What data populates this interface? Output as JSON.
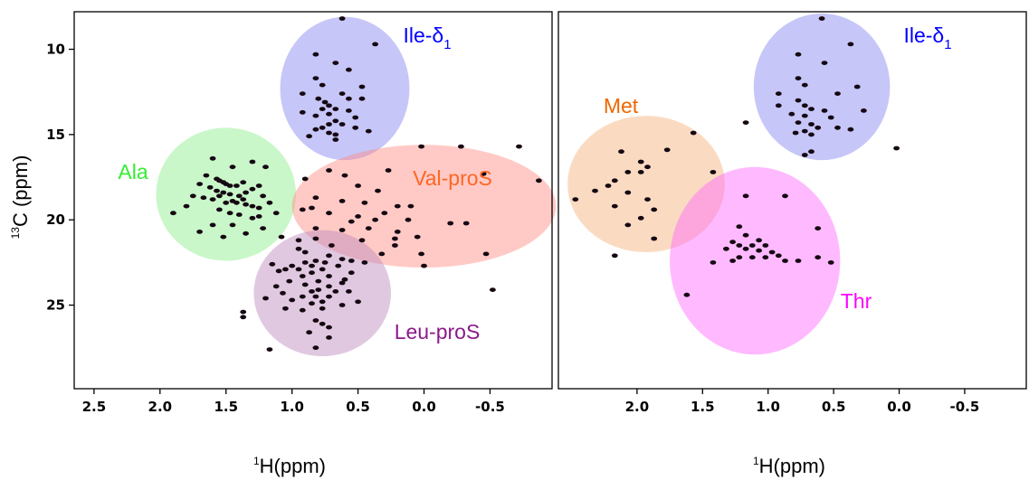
{
  "chart_data": [
    {
      "type": "scatter",
      "panel": "left",
      "xlabel": {
        "sup": "1",
        "text": "H(ppm)"
      },
      "ylabel": {
        "sup": "13",
        "text": "C (ppm)"
      },
      "xlim": [
        2.65,
        -0.97
      ],
      "ylim": [
        7.8,
        29.9
      ],
      "x_reversed": true,
      "y_reversed": true,
      "x_ticks": [
        "2.5",
        "2.0",
        "1.5",
        "1.0",
        "0.5",
        "0.0",
        "-0.5"
      ],
      "y_ticks": [
        "10",
        "15",
        "20",
        "25"
      ],
      "regions": [
        {
          "label": "Ile-δ",
          "sub": "1",
          "color": "#0000ff",
          "fill": "#8080f0",
          "cx": 0.6,
          "cy": 12.3,
          "rx": 0.49,
          "ry": 4.2
        },
        {
          "label": "Ala",
          "color": "#33ee33",
          "fill": "#88ee88",
          "cx": 1.5,
          "cy": 18.5,
          "rx": 0.53,
          "ry": 3.9
        },
        {
          "label": "Val-proS",
          "color": "#ff6622",
          "fill": "#ff8a80",
          "cx": 0.0,
          "cy": 19.2,
          "rx": 1.0,
          "ry": 3.6
        },
        {
          "label": "Leu-proS",
          "color": "#8b1a8b",
          "fill": "#bb88bb",
          "cx": 0.77,
          "cy": 24.3,
          "rx": 0.52,
          "ry": 3.7
        }
      ],
      "points": [
        [
          0.62,
          8.2
        ],
        [
          0.37,
          9.7
        ],
        [
          0.82,
          10.3
        ],
        [
          0.67,
          10.8
        ],
        [
          0.57,
          11.2
        ],
        [
          0.82,
          11.7
        ],
        [
          0.77,
          12.1
        ],
        [
          0.47,
          12.2
        ],
        [
          0.92,
          12.6
        ],
        [
          0.62,
          12.6
        ],
        [
          0.47,
          12.9
        ],
        [
          0.75,
          13.1
        ],
        [
          0.72,
          13.3
        ],
        [
          0.67,
          13.5
        ],
        [
          0.77,
          13.5
        ],
        [
          0.57,
          13.6
        ],
        [
          0.92,
          13.7
        ],
        [
          0.72,
          13.8
        ],
        [
          0.82,
          13.9
        ],
        [
          0.52,
          14.0
        ],
        [
          0.67,
          14.2
        ],
        [
          0.72,
          14.4
        ],
        [
          0.62,
          14.4
        ],
        [
          0.77,
          14.6
        ],
        [
          0.82,
          14.7
        ],
        [
          0.72,
          14.9
        ],
        [
          0.67,
          15.0
        ],
        [
          0.87,
          15.1
        ],
        [
          0.52,
          14.6
        ],
        [
          0.42,
          14.8
        ],
        [
          0.67,
          15.3
        ],
        [
          0.8,
          12.9
        ],
        [
          0.57,
          12.9
        ],
        [
          1.6,
          16.4
        ],
        [
          1.45,
          16.9
        ],
        [
          1.3,
          16.6
        ],
        [
          1.2,
          16.9
        ],
        [
          1.65,
          17.4
        ],
        [
          1.57,
          17.6
        ],
        [
          1.55,
          17.7
        ],
        [
          1.52,
          17.8
        ],
        [
          1.5,
          17.9
        ],
        [
          1.47,
          18.0
        ],
        [
          1.42,
          18.0
        ],
        [
          1.37,
          17.8
        ],
        [
          1.7,
          17.9
        ],
        [
          1.62,
          18.1
        ],
        [
          1.57,
          18.3
        ],
        [
          1.52,
          18.4
        ],
        [
          1.47,
          18.5
        ],
        [
          1.4,
          18.6
        ],
        [
          1.35,
          18.4
        ],
        [
          1.3,
          18.2
        ],
        [
          1.25,
          18.0
        ],
        [
          1.67,
          18.7
        ],
        [
          1.6,
          18.8
        ],
        [
          1.45,
          18.9
        ],
        [
          1.42,
          19.0
        ],
        [
          1.35,
          19.1
        ],
        [
          1.3,
          19.2
        ],
        [
          1.25,
          19.3
        ],
        [
          1.8,
          19.2
        ],
        [
          1.55,
          19.4
        ],
        [
          1.47,
          19.6
        ],
        [
          1.4,
          19.7
        ],
        [
          1.3,
          19.9
        ],
        [
          1.6,
          20.3
        ],
        [
          1.45,
          20.3
        ],
        [
          1.22,
          20.5
        ],
        [
          1.12,
          19.6
        ],
        [
          1.17,
          19.0
        ],
        [
          1.9,
          19.6
        ],
        [
          1.75,
          18.6
        ],
        [
          1.52,
          21.0
        ],
        [
          1.35,
          20.8
        ],
        [
          1.7,
          20.7
        ],
        [
          1.08,
          21.0
        ],
        [
          1.22,
          18.6
        ],
        [
          1.25,
          19.8
        ],
        [
          1.55,
          18.6
        ],
        [
          1.5,
          19.0
        ],
        [
          1.37,
          18.8
        ],
        [
          0.02,
          15.7
        ],
        [
          -0.28,
          15.7
        ],
        [
          -0.45,
          17.3
        ],
        [
          -0.72,
          15.7
        ],
        [
          -0.87,
          17.7
        ],
        [
          0.72,
          17.1
        ],
        [
          0.6,
          17.4
        ],
        [
          0.9,
          17.6
        ],
        [
          0.5,
          18.0
        ],
        [
          0.35,
          18.3
        ],
        [
          0.82,
          18.7
        ],
        [
          0.62,
          18.9
        ],
        [
          0.45,
          19.0
        ],
        [
          0.2,
          19.2
        ],
        [
          0.85,
          19.3
        ],
        [
          0.72,
          19.6
        ],
        [
          0.5,
          19.8
        ],
        [
          0.55,
          20.1
        ],
        [
          0.37,
          20.0
        ],
        [
          0.12,
          20.0
        ],
        [
          -0.2,
          20.2
        ],
        [
          -0.32,
          20.2
        ],
        [
          0.82,
          20.5
        ],
        [
          0.62,
          20.6
        ],
        [
          0.42,
          20.5
        ],
        [
          0.2,
          20.7
        ],
        [
          0.05,
          21.0
        ],
        [
          0.22,
          21.5
        ],
        [
          0.32,
          22.0
        ],
        [
          0.02,
          22.0
        ],
        [
          -0.47,
          22.0
        ],
        [
          -0.52,
          24.1
        ],
        [
          0.0,
          22.7
        ],
        [
          0.47,
          21.2
        ],
        [
          0.3,
          19.6
        ],
        [
          0.1,
          19.2
        ],
        [
          0.92,
          19.4
        ],
        [
          0.22,
          21.1
        ],
        [
          0.27,
          17.1
        ],
        [
          0.82,
          21.1
        ],
        [
          0.7,
          21.5
        ],
        [
          0.95,
          21.7
        ],
        [
          0.9,
          21.9
        ],
        [
          0.72,
          22.1
        ],
        [
          0.62,
          22.3
        ],
        [
          0.82,
          22.4
        ],
        [
          0.75,
          22.5
        ],
        [
          0.9,
          22.5
        ],
        [
          0.85,
          22.7
        ],
        [
          0.65,
          22.7
        ],
        [
          1.0,
          22.7
        ],
        [
          0.95,
          22.9
        ],
        [
          0.77,
          22.9
        ],
        [
          1.15,
          22.6
        ],
        [
          1.1,
          23.0
        ],
        [
          0.85,
          23.1
        ],
        [
          0.72,
          23.3
        ],
        [
          0.55,
          23.1
        ],
        [
          0.92,
          23.3
        ],
        [
          1.02,
          23.6
        ],
        [
          0.8,
          23.6
        ],
        [
          0.62,
          23.7
        ],
        [
          1.12,
          23.9
        ],
        [
          0.9,
          23.8
        ],
        [
          0.72,
          23.9
        ],
        [
          0.8,
          24.1
        ],
        [
          0.67,
          24.2
        ],
        [
          0.57,
          24.2
        ],
        [
          1.07,
          24.3
        ],
        [
          0.92,
          24.5
        ],
        [
          0.82,
          24.5
        ],
        [
          0.72,
          24.5
        ],
        [
          1.2,
          24.6
        ],
        [
          1.0,
          24.7
        ],
        [
          0.77,
          24.8
        ],
        [
          0.85,
          24.9
        ],
        [
          0.62,
          25.0
        ],
        [
          1.05,
          25.2
        ],
        [
          0.92,
          25.3
        ],
        [
          0.77,
          25.2
        ],
        [
          0.5,
          24.8
        ],
        [
          1.37,
          25.4
        ],
        [
          1.37,
          25.7
        ],
        [
          0.82,
          25.9
        ],
        [
          0.77,
          26.1
        ],
        [
          0.72,
          26.3
        ],
        [
          0.87,
          26.6
        ],
        [
          0.72,
          26.9
        ],
        [
          1.17,
          27.6
        ],
        [
          0.82,
          27.5
        ],
        [
          0.45,
          22.5
        ],
        [
          0.95,
          21.2
        ],
        [
          0.55,
          22.4
        ],
        [
          1.05,
          22.9
        ],
        [
          0.6,
          23.5
        ],
        [
          0.85,
          24.2
        ]
      ]
    },
    {
      "type": "scatter",
      "panel": "right",
      "xlabel": {
        "sup": "1",
        "text": "H(ppm)"
      },
      "xlim": [
        2.6,
        -0.97
      ],
      "ylim": [
        7.8,
        29.9
      ],
      "x_reversed": true,
      "y_reversed": true,
      "x_ticks": [
        "2.0",
        "1.5",
        "1.0",
        "0.5",
        "0.0",
        "-0.5"
      ],
      "regions": [
        {
          "label": "Ile-δ",
          "sub": "1",
          "color": "#0000ff",
          "fill": "#8080f0",
          "cx": 0.59,
          "cy": 12.2,
          "rx": 0.52,
          "ry": 4.3
        },
        {
          "label": "Met",
          "color": "#ee6600",
          "fill": "#f5b077",
          "cx": 1.93,
          "cy": 17.9,
          "rx": 0.6,
          "ry": 4.0
        },
        {
          "label": "Thr",
          "color": "#ff00ff",
          "fill": "#ff66ff",
          "cx": 1.1,
          "cy": 22.4,
          "rx": 0.65,
          "ry": 5.5
        }
      ],
      "points": [
        [
          0.59,
          8.2
        ],
        [
          0.37,
          9.7
        ],
        [
          0.77,
          10.3
        ],
        [
          0.57,
          10.8
        ],
        [
          0.77,
          11.7
        ],
        [
          0.72,
          12.1
        ],
        [
          0.32,
          12.2
        ],
        [
          0.47,
          12.6
        ],
        [
          0.92,
          12.6
        ],
        [
          0.77,
          13.0
        ],
        [
          0.72,
          13.3
        ],
        [
          0.67,
          13.5
        ],
        [
          0.57,
          13.6
        ],
        [
          0.82,
          13.8
        ],
        [
          0.72,
          13.9
        ],
        [
          0.52,
          14.0
        ],
        [
          0.77,
          14.3
        ],
        [
          0.67,
          14.4
        ],
        [
          0.62,
          14.6
        ],
        [
          0.72,
          14.8
        ],
        [
          0.67,
          15.0
        ],
        [
          0.79,
          14.9
        ],
        [
          0.47,
          14.6
        ],
        [
          0.37,
          14.7
        ],
        [
          1.17,
          14.3
        ],
        [
          0.27,
          13.6
        ],
        [
          0.67,
          16.0
        ],
        [
          0.02,
          15.8
        ],
        [
          0.72,
          16.2
        ],
        [
          0.92,
          13.3
        ],
        [
          2.12,
          16.0
        ],
        [
          1.57,
          14.9
        ],
        [
          1.97,
          16.6
        ],
        [
          1.92,
          16.9
        ],
        [
          1.97,
          17.2
        ],
        [
          1.77,
          15.9
        ],
        [
          1.42,
          17.2
        ],
        [
          2.07,
          17.2
        ],
        [
          2.17,
          17.7
        ],
        [
          2.22,
          18.0
        ],
        [
          2.32,
          18.3
        ],
        [
          2.07,
          18.4
        ],
        [
          1.92,
          18.8
        ],
        [
          2.47,
          18.8
        ],
        [
          2.17,
          19.2
        ],
        [
          1.87,
          19.4
        ],
        [
          1.97,
          19.9
        ],
        [
          1.87,
          21.1
        ],
        [
          2.07,
          20.3
        ],
        [
          2.17,
          22.1
        ],
        [
          1.17,
          18.6
        ],
        [
          0.87,
          18.6
        ],
        [
          1.22,
          20.4
        ],
        [
          1.17,
          20.9
        ],
        [
          1.07,
          21.2
        ],
        [
          1.27,
          21.3
        ],
        [
          1.22,
          21.5
        ],
        [
          1.12,
          21.5
        ],
        [
          1.02,
          21.5
        ],
        [
          1.32,
          21.7
        ],
        [
          1.17,
          21.7
        ],
        [
          1.07,
          21.8
        ],
        [
          0.97,
          21.9
        ],
        [
          0.92,
          22.1
        ],
        [
          1.12,
          22.2
        ],
        [
          1.22,
          22.2
        ],
        [
          1.02,
          22.2
        ],
        [
          1.27,
          22.4
        ],
        [
          1.42,
          22.5
        ],
        [
          0.87,
          22.4
        ],
        [
          0.77,
          22.4
        ],
        [
          0.52,
          22.5
        ],
        [
          0.62,
          20.5
        ],
        [
          0.62,
          22.2
        ],
        [
          1.62,
          24.4
        ]
      ]
    }
  ]
}
